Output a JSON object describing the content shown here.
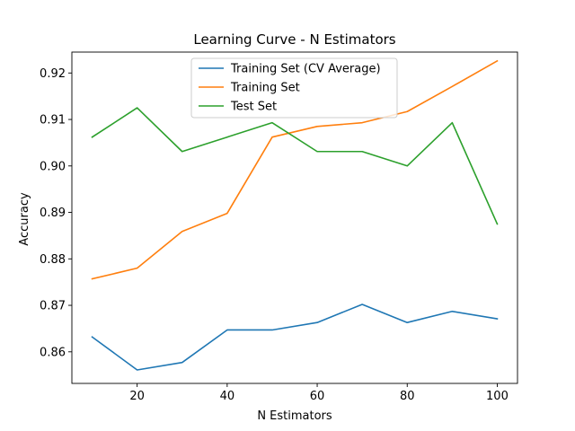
{
  "chart_data": {
    "type": "line",
    "title": "Learning Curve - N Estimators",
    "xlabel": "N Estimators",
    "ylabel": "Accuracy",
    "x": [
      10,
      20,
      30,
      40,
      50,
      60,
      70,
      80,
      90,
      100
    ],
    "xlim": [
      5.5,
      104.5
    ],
    "ylim": [
      0.8532,
      0.9245
    ],
    "xticks": [
      20,
      40,
      60,
      80,
      100
    ],
    "yticks": [
      0.86,
      0.87,
      0.88,
      0.89,
      0.9,
      0.91,
      0.92
    ],
    "ytick_labels": [
      "0.86",
      "0.87",
      "0.88",
      "0.89",
      "0.90",
      "0.91",
      "0.92"
    ],
    "grid": false,
    "legend_position": "top-center",
    "series": [
      {
        "name": "Training Set (CV Average)",
        "color": "#1f77b4",
        "values": [
          0.8632,
          0.8561,
          0.8577,
          0.8647,
          0.8647,
          0.8663,
          0.8702,
          0.8663,
          0.8687,
          0.8671
        ]
      },
      {
        "name": "Training Set",
        "color": "#ff7f0e",
        "values": [
          0.8757,
          0.878,
          0.8859,
          0.8898,
          0.9062,
          0.9085,
          0.9093,
          0.9117,
          0.9171,
          0.9226
        ]
      },
      {
        "name": "Test Set",
        "color": "#2ca02c",
        "values": [
          0.9062,
          0.9125,
          0.9031,
          0.9062,
          0.9093,
          0.9031,
          0.9031,
          0.9,
          0.9093,
          0.8875
        ]
      }
    ]
  }
}
